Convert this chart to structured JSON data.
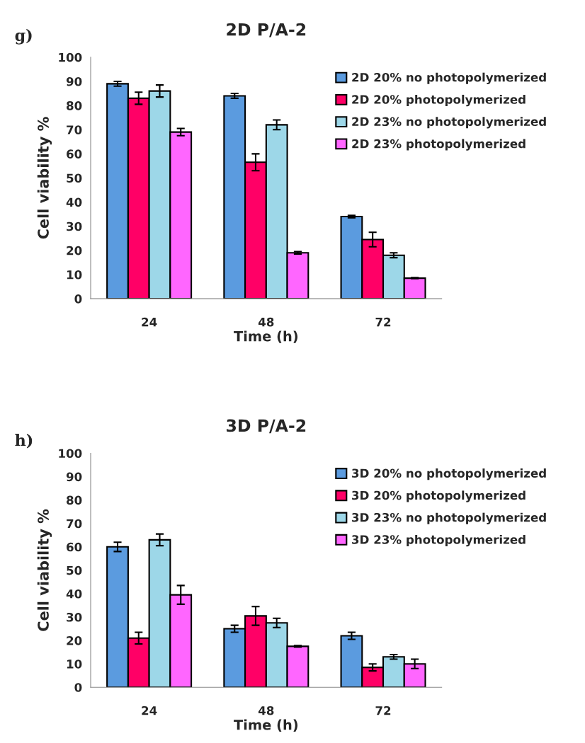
{
  "chart_data": [
    {
      "type": "bar",
      "title": "2D P/A-2",
      "xlabel": "Time (h)",
      "ylabel": "Cell viability %",
      "annotations": [
        "g)"
      ],
      "categories": [
        "24",
        "48",
        "72"
      ],
      "ylim": [
        0,
        100
      ],
      "yticks": [
        0,
        10,
        20,
        30,
        40,
        50,
        60,
        70,
        80,
        90,
        100
      ],
      "grid": false,
      "legend": "top right",
      "series": [
        {
          "name": "2D 20% no photopolymerized",
          "color": "#5b9bdf",
          "values": [
            89,
            84,
            34
          ],
          "errors": [
            1,
            1,
            0.5
          ]
        },
        {
          "name": "2D 20% photopolymerized",
          "color": "#ff0066",
          "values": [
            83,
            56.5,
            24.5
          ],
          "errors": [
            2.5,
            3.5,
            3
          ]
        },
        {
          "name": "2D 23% no photopolymerized",
          "color": "#9dd7e8",
          "values": [
            86,
            72,
            18
          ],
          "errors": [
            2.5,
            2,
            1
          ]
        },
        {
          "name": "2D 23% photopolymerized",
          "color": "#ff66ff",
          "values": [
            69,
            19,
            8.5
          ],
          "errors": [
            1.5,
            0.5,
            0.2
          ]
        }
      ]
    },
    {
      "type": "bar",
      "title": "3D P/A-2",
      "xlabel": "Time (h)",
      "ylabel": "Cell viability %",
      "annotations": [
        "h)"
      ],
      "categories": [
        "24",
        "48",
        "72"
      ],
      "ylim": [
        0,
        100
      ],
      "yticks": [
        0,
        10,
        20,
        30,
        40,
        50,
        60,
        70,
        80,
        90,
        100
      ],
      "grid": false,
      "legend": "top right",
      "series": [
        {
          "name": "3D 20% no photopolymerized",
          "color": "#5b9bdf",
          "values": [
            60,
            25,
            22
          ],
          "errors": [
            2,
            1.5,
            1.5
          ]
        },
        {
          "name": "3D 20% photopolymerized",
          "color": "#ff0066",
          "values": [
            21,
            30.5,
            8.5
          ],
          "errors": [
            2.5,
            4,
            1.5
          ]
        },
        {
          "name": "3D 23% no photopolymerized",
          "color": "#9dd7e8",
          "values": [
            63,
            27.5,
            13
          ],
          "errors": [
            2.5,
            2,
            1
          ]
        },
        {
          "name": "3D 23% photopolymerized",
          "color": "#ff66ff",
          "values": [
            39.5,
            17.5,
            10
          ],
          "errors": [
            4,
            0.3,
            2
          ]
        }
      ]
    }
  ]
}
